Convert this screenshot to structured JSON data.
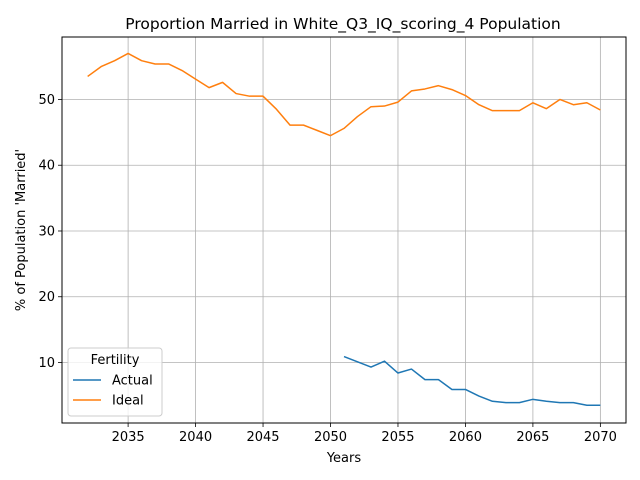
{
  "chart_data": {
    "type": "line",
    "title": "Proportion Married in White_Q3_IQ_scoring_4 Population",
    "xlabel": "Years",
    "ylabel": "% of Population 'Married'",
    "xlim": [
      2030.1,
      2071.9
    ],
    "ylim": [
      0.8,
      59.5
    ],
    "x_ticks": [
      2035,
      2040,
      2045,
      2050,
      2055,
      2060,
      2065,
      2070
    ],
    "y_ticks": [
      10,
      20,
      30,
      40,
      50
    ],
    "grid": true,
    "legend": {
      "title": "Fertility",
      "placement": "lower-left"
    },
    "series": [
      {
        "name": "Actual",
        "color": "#1f77b4",
        "x": [
          2051,
          2052,
          2053,
          2054,
          2055,
          2056,
          2057,
          2058,
          2059,
          2060,
          2061,
          2062,
          2063,
          2064,
          2065,
          2066,
          2067,
          2068,
          2069,
          2070
        ],
        "y": [
          10.9,
          10.1,
          9.3,
          10.2,
          8.4,
          9.0,
          7.4,
          7.4,
          5.9,
          5.9,
          4.9,
          4.1,
          3.9,
          3.9,
          4.4,
          4.1,
          3.9,
          3.9,
          3.5,
          3.5
        ]
      },
      {
        "name": "Ideal",
        "color": "#ff7f0e",
        "x": [
          2032,
          2033,
          2034,
          2035,
          2036,
          2037,
          2038,
          2039,
          2040,
          2041,
          2042,
          2043,
          2044,
          2045,
          2046,
          2047,
          2048,
          2049,
          2050,
          2051,
          2052,
          2053,
          2054,
          2055,
          2056,
          2057,
          2058,
          2059,
          2060,
          2061,
          2062,
          2063,
          2064,
          2065,
          2066,
          2067,
          2068,
          2069,
          2070
        ],
        "y": [
          53.5,
          55.0,
          55.9,
          57.0,
          55.9,
          55.4,
          55.4,
          54.4,
          53.1,
          51.8,
          52.6,
          50.9,
          50.5,
          50.5,
          48.5,
          46.1,
          46.1,
          45.3,
          44.5,
          45.6,
          47.4,
          48.9,
          49.0,
          49.6,
          51.3,
          51.6,
          52.1,
          51.5,
          50.6,
          49.2,
          48.3,
          48.3,
          48.3,
          49.5,
          48.6,
          50.0,
          49.2,
          49.5,
          48.4
        ]
      }
    ]
  }
}
